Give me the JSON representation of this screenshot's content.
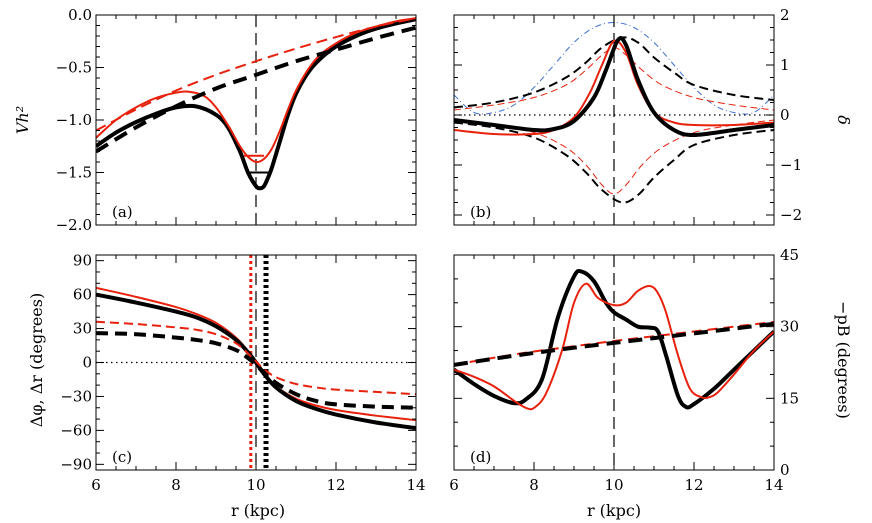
{
  "chart_data": [
    {
      "panel": "a",
      "type": "line",
      "panel_label": "(a)",
      "ylabel": "Vh²",
      "xlim": [
        6,
        14
      ],
      "ylim": [
        -2.0,
        0.0
      ],
      "xticks": [
        6,
        8,
        10,
        12,
        14
      ],
      "xtick_labels": [],
      "yticks": [
        -2.0,
        -1.5,
        -1.0,
        -0.5,
        0.0
      ],
      "ytick_labels": [
        "−2.0",
        "−1.5",
        "−1.0",
        "−0.5",
        "0.0"
      ],
      "ref_lines": [
        {
          "orient": "v",
          "value": 10,
          "style": "long-dash",
          "color": "#000000"
        }
      ],
      "series": [
        {
          "color": "#000000",
          "width": 4,
          "dash": "",
          "x": [
            6,
            6.5,
            7,
            7.5,
            8,
            8.5,
            9,
            9.3,
            9.6,
            9.8,
            10,
            10.1,
            10.2,
            10.3,
            10.4,
            10.6,
            10.8,
            11,
            11.3,
            11.6,
            12,
            12.5,
            13,
            13.5,
            14
          ],
          "y": [
            -1.25,
            -1.12,
            -1.02,
            -0.94,
            -0.88,
            -0.87,
            -0.95,
            -1.07,
            -1.3,
            -1.5,
            -1.63,
            -1.65,
            -1.63,
            -1.55,
            -1.45,
            -1.2,
            -0.95,
            -0.75,
            -0.55,
            -0.42,
            -0.3,
            -0.2,
            -0.13,
            -0.08,
            -0.04
          ]
        },
        {
          "color": "#e8210c",
          "width": 2,
          "dash": "",
          "x": [
            6,
            6.5,
            7,
            7.5,
            8,
            8.3,
            8.7,
            9,
            9.3,
            9.6,
            9.8,
            10,
            10.2,
            10.4,
            10.6,
            10.8,
            11,
            11.3,
            11.6,
            12,
            12.5,
            13,
            13.5,
            14
          ],
          "y": [
            -1.17,
            -1.0,
            -0.88,
            -0.79,
            -0.74,
            -0.73,
            -0.77,
            -0.88,
            -1.05,
            -1.25,
            -1.35,
            -1.4,
            -1.37,
            -1.27,
            -1.1,
            -0.9,
            -0.72,
            -0.52,
            -0.38,
            -0.27,
            -0.17,
            -0.11,
            -0.06,
            -0.03
          ]
        },
        {
          "color": "#e8210c",
          "width": 2,
          "dash": "11,6",
          "x": [
            6,
            7,
            8,
            9,
            10,
            11,
            12,
            13,
            14
          ],
          "y": [
            -1.1,
            -0.9,
            -0.72,
            -0.57,
            -0.44,
            -0.32,
            -0.21,
            -0.11,
            -0.03
          ]
        },
        {
          "color": "#000000",
          "width": 4,
          "dash": "14,8",
          "x": [
            6,
            7,
            8,
            9,
            10,
            11,
            12,
            13,
            14
          ],
          "y": [
            -1.3,
            -1.07,
            -0.87,
            -0.7,
            -0.57,
            -0.44,
            -0.33,
            -0.22,
            -0.12
          ]
        },
        {
          "color": "#000000",
          "width": 2,
          "dash": "",
          "x": [
            9.85,
            10.35
          ],
          "y": [
            -1.5,
            -1.5
          ]
        },
        {
          "color": "#e8210c",
          "width": 2,
          "dash": "",
          "x": [
            9.7,
            10.2
          ],
          "y": [
            -1.34,
            -1.34
          ]
        }
      ]
    },
    {
      "panel": "b",
      "type": "line",
      "panel_label": "(b)",
      "ylabel": "δ",
      "xlim": [
        6,
        14
      ],
      "ylim": [
        -2.2,
        2.0
      ],
      "xticks": [
        6,
        8,
        10,
        12,
        14
      ],
      "xtick_labels": [],
      "yticks": [
        -2,
        -1,
        0,
        1,
        2
      ],
      "ytick_labels": [
        "−2",
        "−1",
        "0",
        "1",
        "2"
      ],
      "ref_lines": [
        {
          "orient": "v",
          "value": 10,
          "style": "long-dash",
          "color": "#000000"
        },
        {
          "orient": "h",
          "value": 0,
          "style": "dotted",
          "color": "#000000"
        }
      ],
      "series": [
        {
          "color": "#3b6fd6",
          "width": 1,
          "dash": "6,3,1,3",
          "x": [
            6,
            6.5,
            7,
            7.5,
            8,
            8.5,
            9,
            9.5,
            10,
            10.5,
            11,
            11.5,
            12,
            12.5,
            13,
            13.5,
            14
          ],
          "y": [
            0.4,
            0.05,
            0.05,
            0.2,
            0.55,
            1.0,
            1.45,
            1.75,
            1.85,
            1.75,
            1.45,
            1.0,
            0.55,
            0.2,
            0.05,
            0.05,
            0.4
          ]
        },
        {
          "color": "#e8210c",
          "width": 1,
          "dash": "7,4",
          "x": [
            6,
            7,
            8,
            8.8,
            9.3,
            9.7,
            10,
            10.3,
            10.7,
            11.2,
            12,
            13,
            14
          ],
          "y": [
            0.1,
            0.2,
            0.35,
            0.6,
            0.9,
            1.2,
            1.35,
            1.2,
            0.9,
            0.6,
            0.35,
            0.2,
            0.1
          ]
        },
        {
          "color": "#e8210c",
          "width": 1,
          "dash": "7,4",
          "x": [
            6,
            7,
            8,
            8.8,
            9.3,
            9.7,
            10,
            10.3,
            10.7,
            11.2,
            12,
            13,
            14
          ],
          "y": [
            -0.1,
            -0.2,
            -0.35,
            -0.65,
            -1.0,
            -1.4,
            -1.58,
            -1.4,
            -1.0,
            -0.65,
            -0.35,
            -0.2,
            -0.1
          ]
        },
        {
          "color": "#000000",
          "width": 2,
          "dash": "9,5",
          "x": [
            6,
            7,
            8,
            8.8,
            9.3,
            9.7,
            10.2,
            10.6,
            11,
            11.5,
            12,
            13,
            14
          ],
          "y": [
            0.15,
            0.25,
            0.45,
            0.75,
            1.05,
            1.35,
            1.55,
            1.45,
            1.15,
            0.85,
            0.6,
            0.4,
            0.3
          ]
        },
        {
          "color": "#000000",
          "width": 2,
          "dash": "9,5",
          "x": [
            6,
            7,
            8,
            8.8,
            9.3,
            9.7,
            10.2,
            10.6,
            11,
            11.5,
            12,
            13,
            14
          ],
          "y": [
            -0.15,
            -0.25,
            -0.45,
            -0.8,
            -1.15,
            -1.5,
            -1.75,
            -1.6,
            -1.25,
            -0.9,
            -0.6,
            -0.4,
            -0.3
          ]
        },
        {
          "color": "#e8210c",
          "width": 2,
          "dash": "",
          "x": [
            6,
            7,
            8,
            8.5,
            9,
            9.4,
            9.7,
            10,
            10.3,
            10.6,
            11,
            11.5,
            12,
            13,
            14
          ],
          "y": [
            -0.3,
            -0.38,
            -0.38,
            -0.3,
            -0.05,
            0.45,
            1.0,
            1.48,
            1.25,
            0.6,
            0.05,
            -0.15,
            -0.2,
            -0.2,
            -0.15
          ]
        },
        {
          "color": "#000000",
          "width": 4,
          "dash": "",
          "x": [
            6,
            7,
            8,
            8.5,
            9,
            9.5,
            9.8,
            10.1,
            10.3,
            10.6,
            11,
            11.5,
            12,
            13,
            14
          ],
          "y": [
            -0.1,
            -0.2,
            -0.3,
            -0.28,
            -0.12,
            0.35,
            0.9,
            1.5,
            1.4,
            0.7,
            0.05,
            -0.3,
            -0.4,
            -0.3,
            -0.2
          ]
        }
      ]
    },
    {
      "panel": "c",
      "type": "line",
      "panel_label": "(c)",
      "ylabel": "Δφ, Δr (degrees)",
      "xlabel": "r (kpc)",
      "xlim": [
        6,
        14
      ],
      "ylim": [
        -95,
        95
      ],
      "xticks": [
        6,
        8,
        10,
        12,
        14
      ],
      "xtick_labels": [
        "6",
        "8",
        "10",
        "12",
        "14"
      ],
      "yticks": [
        -90,
        -60,
        -30,
        0,
        30,
        60,
        90
      ],
      "ytick_labels": [
        "−90",
        "−60",
        "−30",
        "0",
        "30",
        "60",
        "90"
      ],
      "ref_lines": [
        {
          "orient": "v",
          "value": 10,
          "style": "long-dash",
          "color": "#000000"
        },
        {
          "orient": "h",
          "value": 0,
          "style": "dotted",
          "color": "#000000"
        },
        {
          "orient": "v",
          "value": 9.87,
          "style": "dotted-bold",
          "color": "#e8210c"
        },
        {
          "orient": "v",
          "value": 10.25,
          "style": "dotted-bold",
          "color": "#000000"
        }
      ],
      "series": [
        {
          "color": "#e8210c",
          "width": 2,
          "dash": "",
          "x": [
            6,
            7,
            8,
            8.5,
            9,
            9.5,
            9.8,
            10,
            10.2,
            10.5,
            11,
            11.5,
            12,
            13,
            14
          ],
          "y": [
            66,
            58,
            49,
            43,
            35,
            22,
            10,
            0,
            -10,
            -21,
            -32,
            -38,
            -42,
            -47,
            -51
          ]
        },
        {
          "color": "#000000",
          "width": 4,
          "dash": "",
          "x": [
            6,
            7,
            8,
            8.5,
            9,
            9.5,
            9.8,
            10,
            10.2,
            10.5,
            11,
            11.5,
            12,
            13,
            14
          ],
          "y": [
            60,
            53,
            45,
            40,
            32,
            20,
            9,
            0,
            -10,
            -22,
            -34,
            -41,
            -46,
            -53,
            -58
          ]
        },
        {
          "color": "#e8210c",
          "width": 2,
          "dash": "9,5",
          "x": [
            6,
            7,
            8,
            8.5,
            9,
            9.5,
            9.8,
            10,
            10.2,
            10.5,
            11,
            11.5,
            12,
            13,
            14
          ],
          "y": [
            36,
            34,
            31,
            29,
            25,
            17,
            8,
            1,
            -6,
            -13,
            -19,
            -22,
            -24,
            -26,
            -28
          ]
        },
        {
          "color": "#000000",
          "width": 4,
          "dash": "12,7",
          "x": [
            6,
            7,
            8,
            8.5,
            9,
            9.5,
            9.8,
            10,
            10.2,
            10.5,
            11,
            11.5,
            12,
            13,
            14
          ],
          "y": [
            26,
            25,
            22,
            20,
            17,
            11,
            4,
            -2,
            -9,
            -18,
            -28,
            -34,
            -37,
            -39,
            -40
          ]
        }
      ]
    },
    {
      "panel": "d",
      "type": "line",
      "panel_label": "(d)",
      "ylabel": "−pB (degrees)",
      "xlabel": "r (kpc)",
      "xlim": [
        6,
        14
      ],
      "ylim": [
        0,
        45
      ],
      "xticks": [
        6,
        8,
        10,
        12,
        14
      ],
      "xtick_labels": [
        "6",
        "8",
        "10",
        "12",
        "14"
      ],
      "yticks": [
        0,
        15,
        30,
        45
      ],
      "ytick_labels": [
        "0",
        "15",
        "30",
        "45"
      ],
      "ref_lines": [
        {
          "orient": "v",
          "value": 10,
          "style": "long-dash",
          "color": "#000000"
        }
      ],
      "series": [
        {
          "color": "#000000",
          "width": 4,
          "dash": "",
          "x": [
            6,
            6.5,
            7,
            7.5,
            7.8,
            8.2,
            8.6,
            9,
            9.2,
            9.5,
            9.8,
            10,
            10.3,
            10.6,
            10.9,
            11.1,
            11.3,
            11.6,
            11.8,
            12,
            12.5,
            13,
            13.5,
            14
          ],
          "y": [
            21,
            18,
            15.5,
            14,
            14.8,
            19,
            32,
            40.5,
            41.5,
            39.5,
            35,
            33,
            31.5,
            30,
            29.8,
            29,
            24,
            15.5,
            13.2,
            13.8,
            17,
            21,
            25,
            29
          ]
        },
        {
          "color": "#e8210c",
          "width": 2,
          "dash": "",
          "x": [
            6,
            6.5,
            7,
            7.5,
            7.8,
            8,
            8.3,
            8.7,
            9,
            9.3,
            9.6,
            10,
            10.3,
            10.6,
            10.9,
            11.1,
            11.3,
            11.6,
            11.9,
            12.2,
            12.4,
            12.6,
            13,
            13.5,
            14
          ],
          "y": [
            21,
            19.5,
            17.5,
            14.5,
            13,
            13,
            16,
            25,
            35,
            39,
            36,
            34.5,
            35,
            37.5,
            38.5,
            37,
            33,
            24,
            17,
            15.2,
            15.3,
            16.3,
            20,
            25,
            29
          ]
        },
        {
          "color": "#e8210c",
          "width": 2,
          "dash": "10,6",
          "x": [
            6,
            7,
            8,
            9,
            10,
            11,
            12,
            13,
            14
          ],
          "y": [
            22,
            23.5,
            24.8,
            25.9,
            27,
            28,
            29,
            30,
            31
          ]
        },
        {
          "color": "#000000",
          "width": 4,
          "dash": "14,8",
          "x": [
            6,
            7,
            8,
            9,
            10,
            11,
            12,
            13,
            14
          ],
          "y": [
            22,
            23.3,
            24.5,
            25.6,
            26.6,
            27.6,
            28.6,
            29.6,
            30.6
          ]
        }
      ]
    }
  ]
}
